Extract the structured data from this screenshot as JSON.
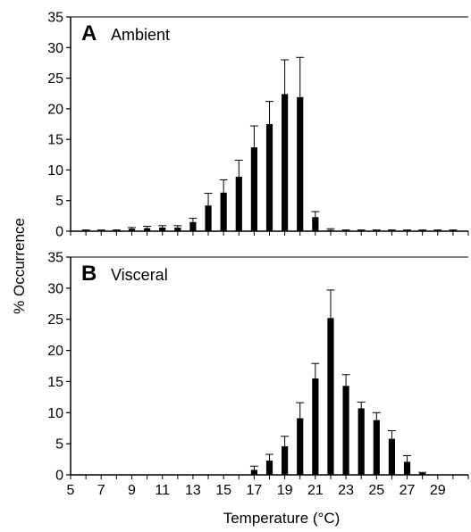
{
  "figure": {
    "ylabel": "% Occurrence",
    "xlabel": "Temperature (°C)"
  },
  "chart_data": [
    {
      "type": "bar",
      "panel_letter": "A",
      "title": "Ambient",
      "ylabel": "% Occurrence",
      "xlabel": "Temperature (°C)",
      "ylim": [
        0,
        35
      ],
      "xlim": [
        5,
        31
      ],
      "y_ticks": [
        0,
        5,
        10,
        15,
        20,
        25,
        30,
        35
      ],
      "x_ticks": [
        5,
        7,
        9,
        11,
        13,
        15,
        17,
        19,
        21,
        23,
        25,
        27,
        29
      ],
      "grid": false,
      "error_bars": true,
      "x": [
        6,
        7,
        8,
        9,
        10,
        11,
        12,
        13,
        14,
        15,
        16,
        17,
        18,
        19,
        20,
        21,
        22,
        23,
        24,
        25,
        26,
        27,
        28,
        29,
        30
      ],
      "values": [
        0.1,
        0.1,
        0.1,
        0.4,
        0.5,
        0.6,
        0.6,
        1.5,
        4.2,
        6.3,
        8.9,
        13.7,
        17.5,
        22.4,
        21.9,
        2.3,
        0.2,
        0.1,
        0.1,
        0.1,
        0.1,
        0.1,
        0.1,
        0.1,
        0.1
      ],
      "errors": [
        0.1,
        0.1,
        0.1,
        0.2,
        0.3,
        0.3,
        0.3,
        0.6,
        2.0,
        2.1,
        2.7,
        3.5,
        3.7,
        5.6,
        6.5,
        0.9,
        0.2,
        0.1,
        0.1,
        0.1,
        0.1,
        0.1,
        0.1,
        0.1,
        0.1
      ]
    },
    {
      "type": "bar",
      "panel_letter": "B",
      "title": "Visceral",
      "ylabel": "% Occurrence",
      "xlabel": "Temperature (°C)",
      "ylim": [
        0,
        35
      ],
      "xlim": [
        5,
        31
      ],
      "y_ticks": [
        0,
        5,
        10,
        15,
        20,
        25,
        30,
        35
      ],
      "x_ticks": [
        5,
        7,
        9,
        11,
        13,
        15,
        17,
        19,
        21,
        23,
        25,
        27,
        29
      ],
      "grid": false,
      "error_bars": true,
      "x": [
        17,
        18,
        19,
        20,
        21,
        22,
        23,
        24,
        25,
        26,
        27,
        28
      ],
      "values": [
        0.8,
        2.3,
        4.6,
        9.1,
        15.5,
        25.2,
        14.3,
        10.7,
        8.8,
        5.8,
        2.1,
        0.3
      ],
      "errors": [
        0.6,
        1.0,
        1.6,
        2.5,
        2.4,
        4.5,
        1.8,
        1.0,
        1.2,
        1.3,
        1.0,
        0.1
      ]
    }
  ]
}
